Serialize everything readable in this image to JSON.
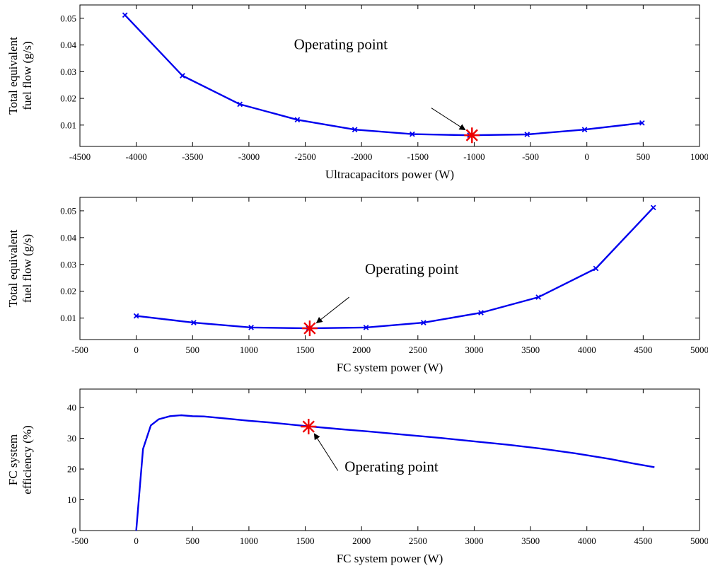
{
  "chart_data": [
    {
      "type": "line",
      "xlabel": "Ultracapacitors power (W)",
      "ylabel_lines": [
        "Total equivalent",
        "fuel flow (g/s)"
      ],
      "xlim": [
        -4500,
        1000
      ],
      "ylim": [
        0.002,
        0.055
      ],
      "xticks": [
        -4500,
        -4000,
        -3500,
        -3000,
        -2500,
        -2000,
        -1500,
        -1000,
        -500,
        0,
        500,
        1000
      ],
      "yticks": [
        0.01,
        0.02,
        0.03,
        0.04,
        0.05
      ],
      "xtick_labels": [
        "-4500",
        "-4000",
        "-3500",
        "-3000",
        "-2500",
        "-2000",
        "-1500",
        "-1000",
        "-500",
        "0",
        "500",
        "1000"
      ],
      "ytick_labels": [
        "0.01",
        "0.02",
        "0.03",
        "0.04",
        "0.05"
      ],
      "series": [
        {
          "color": "#0000ee",
          "marker": "x",
          "x": [
            -4100,
            -3590,
            -3080,
            -2570,
            -2060,
            -1550,
            -1040,
            -530,
            -20,
            490
          ],
          "y": [
            0.0512,
            0.0285,
            0.0178,
            0.012,
            0.0083,
            0.0066,
            0.0062,
            0.0065,
            0.0083,
            0.0108
          ]
        }
      ],
      "highlight": {
        "x": -1020,
        "y": 0.0062,
        "color": "#ee0000"
      },
      "annotation": {
        "text": "Operating point",
        "text_x": -2600,
        "text_y": 0.0385,
        "arrow_from": [
          -1380,
          0.0164
        ],
        "arrow_to": [
          -1080,
          0.0082
        ]
      }
    },
    {
      "type": "line",
      "xlabel": "FC system power (W)",
      "ylabel_lines": [
        "Total equivalent",
        "fuel flow (g/s)"
      ],
      "xlim": [
        -500,
        5000
      ],
      "ylim": [
        0.002,
        0.055
      ],
      "xticks": [
        -500,
        0,
        500,
        1000,
        1500,
        2000,
        2500,
        3000,
        3500,
        4000,
        4500,
        5000
      ],
      "yticks": [
        0.01,
        0.02,
        0.03,
        0.04,
        0.05
      ],
      "xtick_labels": [
        "-500",
        "0",
        "500",
        "1000",
        "1500",
        "2000",
        "2500",
        "3000",
        "3500",
        "4000",
        "4500",
        "5000"
      ],
      "ytick_labels": [
        "0.01",
        "0.02",
        "0.03",
        "0.04",
        "0.05"
      ],
      "series": [
        {
          "color": "#0000ee",
          "marker": "x",
          "x": [
            0,
            510,
            1020,
            1530,
            2040,
            2550,
            3060,
            3570,
            4080,
            4590
          ],
          "y": [
            0.0108,
            0.0083,
            0.0065,
            0.0062,
            0.0065,
            0.0083,
            0.012,
            0.0178,
            0.0285,
            0.0512
          ]
        }
      ],
      "highlight": {
        "x": 1540,
        "y": 0.0062,
        "color": "#ee0000"
      },
      "annotation": {
        "text": "Operating point",
        "text_x": 2030,
        "text_y": 0.0265,
        "arrow_from": [
          1890,
          0.0178
        ],
        "arrow_to": [
          1600,
          0.0082
        ]
      }
    },
    {
      "type": "line",
      "xlabel": "FC system power (W)",
      "ylabel_lines": [
        "FC system",
        "efficiency (%)"
      ],
      "xlim": [
        -500,
        5000
      ],
      "ylim": [
        0,
        46
      ],
      "xticks": [
        -500,
        0,
        500,
        1000,
        1500,
        2000,
        2500,
        3000,
        3500,
        4000,
        4500,
        5000
      ],
      "yticks": [
        0,
        10,
        20,
        30,
        40
      ],
      "xtick_labels": [
        "-500",
        "0",
        "500",
        "1000",
        "1500",
        "2000",
        "2500",
        "3000",
        "3500",
        "4000",
        "4500",
        "5000"
      ],
      "ytick_labels": [
        "0",
        "10",
        "20",
        "30",
        "40"
      ],
      "series": [
        {
          "color": "#0000ee",
          "marker": "none",
          "x": [
            0,
            60,
            130,
            200,
            300,
            400,
            500,
            600,
            800,
            1000,
            1200,
            1500,
            1800,
            2100,
            2400,
            2700,
            3000,
            3300,
            3600,
            3900,
            4200,
            4400,
            4600
          ],
          "y": [
            0,
            26.5,
            34.2,
            36.2,
            37.2,
            37.5,
            37.2,
            37.1,
            36.4,
            35.7,
            35.1,
            34.0,
            33.0,
            32.1,
            31.1,
            30.1,
            29.0,
            27.9,
            26.6,
            25.1,
            23.3,
            21.9,
            20.6
          ]
        }
      ],
      "highlight": {
        "x": 1530,
        "y": 33.8,
        "color": "#ee0000"
      },
      "annotation": {
        "text": "Operating point",
        "text_x": 1850,
        "text_y": 19.2,
        "arrow_from": [
          1790,
          19.5
        ],
        "arrow_to": [
          1580,
          31.5
        ]
      }
    }
  ]
}
